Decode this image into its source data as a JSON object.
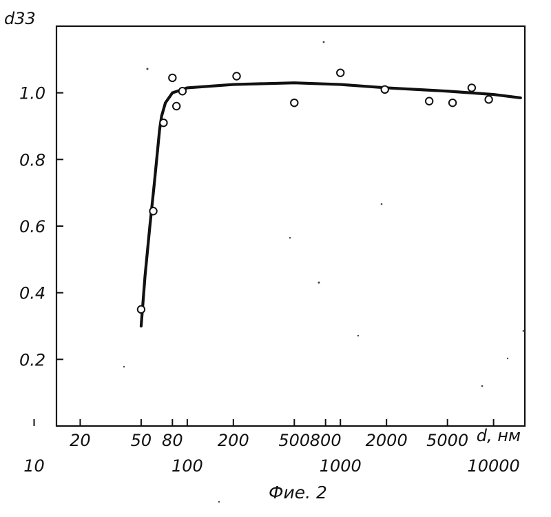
{
  "chart_data": {
    "type": "scatter",
    "title": "",
    "ylabel": "d33",
    "xlabel": "d, нм",
    "xscale": "log",
    "xlim": [
      14,
      16000
    ],
    "ylim": [
      0.0,
      1.2
    ],
    "grid": false,
    "legend": "none",
    "y_ticks": [
      {
        "value": 0.2,
        "label": "0.2"
      },
      {
        "value": 0.4,
        "label": "0.4"
      },
      {
        "value": 0.6,
        "label": "0.6"
      },
      {
        "value": 0.8,
        "label": "0.8"
      },
      {
        "value": 1.0,
        "label": "1.0"
      }
    ],
    "x_ticks_upper": [
      {
        "value": 20,
        "label": "20"
      },
      {
        "value": 50,
        "label": "50"
      },
      {
        "value": 80,
        "label": "80"
      },
      {
        "value": 200,
        "label": "200"
      },
      {
        "value": 500,
        "label": "500"
      },
      {
        "value": 800,
        "label": "800"
      },
      {
        "value": 2000,
        "label": "2000"
      },
      {
        "value": 5000,
        "label": "5000"
      }
    ],
    "x_ticks_lower": [
      {
        "value": 10,
        "label": "10"
      },
      {
        "value": 100,
        "label": "100"
      },
      {
        "value": 1000,
        "label": "1000"
      },
      {
        "value": 10000,
        "label": "10000"
      }
    ],
    "points": [
      {
        "x": 50,
        "y": 0.35
      },
      {
        "x": 60,
        "y": 0.645
      },
      {
        "x": 70,
        "y": 0.91
      },
      {
        "x": 80,
        "y": 1.045
      },
      {
        "x": 85,
        "y": 0.96
      },
      {
        "x": 93,
        "y": 1.005
      },
      {
        "x": 210,
        "y": 1.05
      },
      {
        "x": 500,
        "y": 0.97
      },
      {
        "x": 1000,
        "y": 1.06
      },
      {
        "x": 1950,
        "y": 1.01
      },
      {
        "x": 3800,
        "y": 0.975
      },
      {
        "x": 5400,
        "y": 0.97
      },
      {
        "x": 7200,
        "y": 1.015
      },
      {
        "x": 9300,
        "y": 0.98
      }
    ],
    "fit_curve": [
      {
        "x": 50,
        "y": 0.3
      },
      {
        "x": 53,
        "y": 0.45
      },
      {
        "x": 57,
        "y": 0.6
      },
      {
        "x": 61,
        "y": 0.73
      },
      {
        "x": 66,
        "y": 0.89
      },
      {
        "x": 68,
        "y": 0.93
      },
      {
        "x": 72,
        "y": 0.97
      },
      {
        "x": 80,
        "y": 1.0
      },
      {
        "x": 100,
        "y": 1.015
      },
      {
        "x": 200,
        "y": 1.025
      },
      {
        "x": 500,
        "y": 1.03
      },
      {
        "x": 1000,
        "y": 1.025
      },
      {
        "x": 2000,
        "y": 1.015
      },
      {
        "x": 5000,
        "y": 1.005
      },
      {
        "x": 10000,
        "y": 0.995
      },
      {
        "x": 15000,
        "y": 0.985
      }
    ],
    "caption": "Фие. 2"
  }
}
